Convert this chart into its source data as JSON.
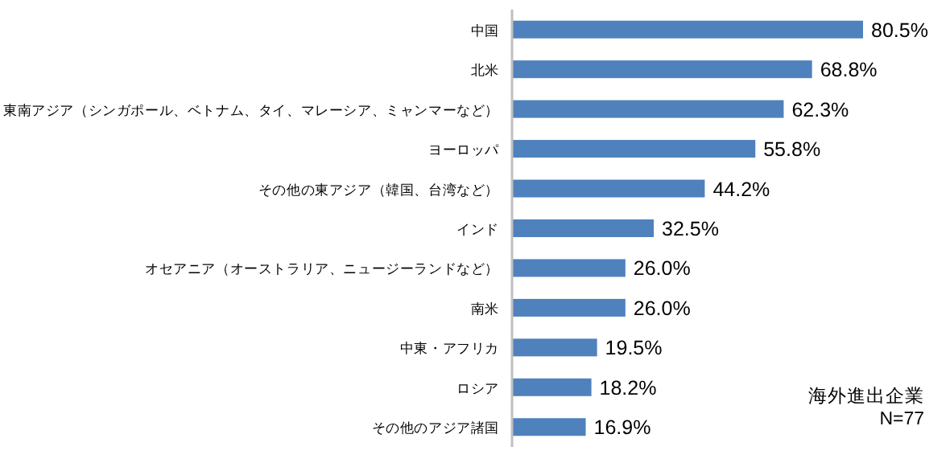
{
  "chart_data": {
    "type": "bar",
    "orientation": "horizontal",
    "categories": [
      "中国",
      "北米",
      "東南アジア（シンガポール、ベトナム、タイ、マレーシア、ミャンマーなど）",
      "ヨーロッパ",
      "その他の東アジア（韓国、台湾など）",
      "インド",
      "オセアニア（オーストラリア、ニュージーランドなど）",
      "南米",
      "中東・アフリカ",
      "ロシア",
      "その他のアジア諸国"
    ],
    "values": [
      80.5,
      68.8,
      62.3,
      55.8,
      44.2,
      32.5,
      26.0,
      26.0,
      19.5,
      18.2,
      16.9
    ],
    "value_labels": [
      "80.5%",
      "68.8%",
      "62.3%",
      "55.8%",
      "44.2%",
      "32.5%",
      "26.0%",
      "26.0%",
      "19.5%",
      "18.2%",
      "16.9%"
    ],
    "color": "#4f81bd",
    "annotations": [
      "海外進出企業\nN=77"
    ]
  }
}
